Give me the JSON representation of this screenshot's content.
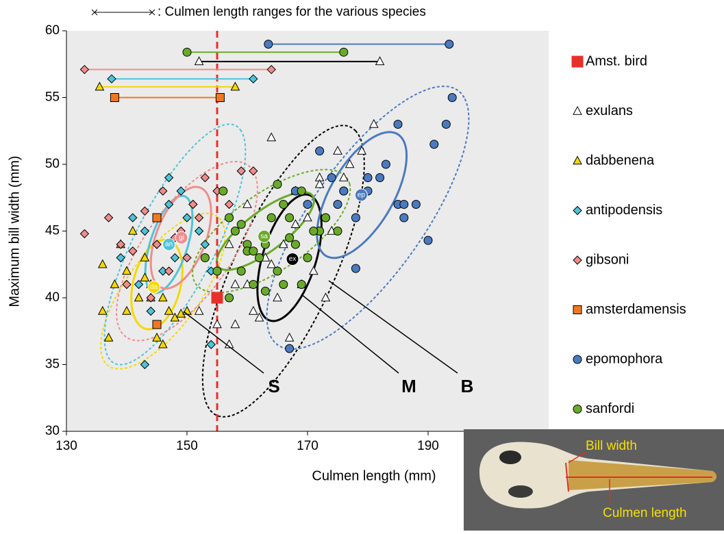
{
  "chart_data": {
    "type": "scatter",
    "range_note": ": Culmen length ranges for the various species",
    "x_label": "Culmen length (mm)",
    "y_label": "Maximum bill width (mm)",
    "xlim": [
      130,
      210
    ],
    "ylim": [
      30,
      60
    ],
    "xticks": [
      130,
      150,
      170,
      190
    ],
    "yticks": [
      30,
      35,
      40,
      45,
      50,
      55,
      60
    ],
    "reference_x": 155,
    "reference_color": "#e8302a",
    "annotations": [
      "S",
      "M",
      "B"
    ],
    "series": [
      {
        "name": "Amst. bird",
        "color": "#e8302a",
        "marker": "square",
        "x": [
          155
        ],
        "values": [
          40
        ]
      },
      {
        "name": "exulans",
        "color": "#ffffff",
        "line_color": "#000000",
        "marker": "triangle",
        "x": [
          181,
          175,
          172,
          164,
          168,
          160,
          157,
          158,
          163,
          166,
          170,
          174,
          176,
          161,
          165,
          169,
          171,
          173,
          158,
          162,
          167,
          179,
          177,
          152,
          155,
          160,
          164,
          168,
          172,
          157
        ],
        "values": [
          53,
          51,
          49,
          52,
          48,
          47,
          44,
          41,
          43,
          44,
          46,
          45,
          49,
          39,
          40,
          41,
          42,
          40,
          38,
          38.5,
          37,
          51,
          50,
          39,
          38,
          41,
          42.5,
          45.5,
          48.5,
          36.5
        ],
        "range": [
          152,
          182
        ],
        "range_y": 57.7,
        "center_label": "ex",
        "center": [
          167.5,
          42.9
        ],
        "ellipses": [
          {
            "center": [
              167,
              43
            ],
            "axis1": [
              4,
              4.5
            ],
            "axis2": [
              -3.5,
              1.5
            ],
            "dashed": false
          },
          {
            "center": [
              166,
              42
            ],
            "axis1": [
              12,
              10.5
            ],
            "axis2": [
              -6,
              3
            ],
            "dashed": true
          }
        ]
      },
      {
        "name": "dabbenena",
        "color": "#f5d800",
        "line_color": "#f5d800",
        "marker": "triangle",
        "x": [
          136,
          138,
          140,
          142,
          143,
          144,
          145,
          146,
          147,
          148,
          139,
          141,
          137,
          149,
          150,
          143,
          146,
          140,
          136,
          144
        ],
        "values": [
          42.5,
          41,
          39,
          40,
          43,
          41,
          37,
          40,
          39,
          38.5,
          44,
          45,
          37,
          38.8,
          39,
          41.5,
          36.5,
          42,
          39,
          40
        ],
        "range": [
          135.5,
          158
        ],
        "range_y": 55.8,
        "center_label": "da",
        "center": [
          144.5,
          40.8
        ],
        "ellipses": [
          {
            "center": [
              145,
              41
            ],
            "axis1": [
              3,
              3
            ],
            "axis2": [
              -3,
              1.5
            ],
            "dashed": false
          },
          {
            "center": [
              146,
              40.5
            ],
            "axis1": [
              10,
              5
            ],
            "axis2": [
              -2.5,
              3
            ],
            "dashed": true
          }
        ]
      },
      {
        "name": "antipodensis",
        "color": "#4fc3d9",
        "line_color": "#4fc3d9",
        "marker": "diamond",
        "x": [
          139,
          141,
          143,
          145,
          147,
          149,
          150,
          152,
          153,
          154,
          146,
          144,
          142,
          148,
          151,
          143,
          147,
          154
        ],
        "values": [
          43,
          46,
          45,
          44,
          47,
          48,
          46,
          45,
          44,
          36.5,
          42,
          39,
          41,
          43,
          47,
          35,
          49,
          42
        ],
        "range": [
          137.5,
          161
        ],
        "range_y": 56.4,
        "center_label": "an",
        "center": [
          147,
          44
        ],
        "ellipses": [
          {
            "center": [
              147,
              44
            ],
            "axis1": [
              3,
              3.5
            ],
            "axis2": [
              -2.5,
              1
            ],
            "dashed": false
          },
          {
            "center": [
              148,
              44
            ],
            "axis1": [
              11,
              8.5
            ],
            "axis2": [
              -4,
              3
            ],
            "dashed": true
          }
        ]
      },
      {
        "name": "gibsoni",
        "color": "#f08c8c",
        "line_color": "#f08c8c",
        "marker": "diamond",
        "x": [
          133,
          137,
          139,
          141,
          143,
          145,
          147,
          149,
          151,
          153,
          155,
          157,
          159,
          161,
          140,
          144,
          148,
          152,
          150,
          146
        ],
        "values": [
          44.8,
          46,
          44,
          43.5,
          46.5,
          44,
          42,
          45,
          47,
          49,
          48,
          47,
          49.5,
          49.5,
          41,
          40,
          44.5,
          46,
          43,
          48
        ],
        "range": [
          133,
          164
        ],
        "range_y": 57.1,
        "center_label": "gi",
        "center": [
          149.1,
          44.5
        ],
        "ellipses": [
          {
            "center": [
              149,
              44.5
            ],
            "axis1": [
              4,
              3.5
            ],
            "axis2": [
              -3,
              1.5
            ],
            "dashed": false
          },
          {
            "center": [
              150,
              43.5
            ],
            "axis1": [
              11,
              6
            ],
            "axis2": [
              -4,
              3
            ],
            "dashed": true
          }
        ]
      },
      {
        "name": "amsterdamensis",
        "color": "#f07820",
        "line_color": "#f07820",
        "marker": "square",
        "x": [
          145,
          145
        ],
        "values": [
          46,
          38
        ],
        "range": [
          138,
          155.5
        ],
        "range_y": 55
      },
      {
        "name": "epomophora",
        "color": "#4a7abf",
        "line_color": "#4a7abf",
        "marker": "circle",
        "x": [
          183,
          185,
          188,
          191,
          193,
          194,
          185,
          180,
          178,
          176,
          175,
          172,
          174,
          182,
          186,
          178,
          170,
          168,
          167,
          186,
          190,
          173,
          176,
          180
        ],
        "values": [
          50,
          53,
          47,
          51.5,
          53,
          55,
          47,
          48,
          46,
          48,
          47,
          51,
          49,
          49,
          47,
          42.2,
          47,
          48,
          36.2,
          46,
          44.3,
          46,
          48,
          49
        ],
        "range": [
          163.5,
          193.5
        ],
        "range_y": 59,
        "center_label": "ep",
        "center": [
          178.9,
          47.7
        ],
        "ellipses": [
          {
            "center": [
              179,
              47.7
            ],
            "axis1": [
              7,
              4
            ],
            "axis2": [
              -2.5,
              2.5
            ],
            "dashed": false
          },
          {
            "center": [
              180,
              46
            ],
            "axis1": [
              16,
              9
            ],
            "axis2": [
              -5,
              4
            ],
            "dashed": true
          }
        ]
      },
      {
        "name": "sanfordi",
        "color": "#6aaa2a",
        "line_color": "#6aaa2a",
        "marker": "circle",
        "x": [
          156,
          158,
          160,
          162,
          164,
          166,
          168,
          170,
          172,
          157,
          159,
          161,
          163,
          165,
          167,
          169,
          171,
          153,
          155,
          159,
          163,
          166,
          160,
          175,
          173,
          165,
          167,
          157,
          161,
          169
        ],
        "values": [
          48,
          45,
          44,
          43,
          46,
          47,
          44,
          43,
          45,
          40,
          42,
          41,
          40.5,
          42,
          46,
          48,
          45,
          43,
          42,
          45.5,
          44,
          41,
          43.5,
          45,
          46,
          48.5,
          44.5,
          46,
          43.5,
          41
        ],
        "range": [
          150,
          176
        ],
        "range_y": 58.4,
        "center_label": "sa",
        "center": [
          162.8,
          44.6
        ],
        "ellipses": [
          {
            "center": [
              163,
              45
            ],
            "axis1": [
              8,
              2.5
            ],
            "axis2": [
              -1,
              1.5
            ],
            "dashed": false
          },
          {
            "center": [
              164,
              45
            ],
            "axis1": [
              13,
              3.5
            ],
            "axis2": [
              -1.5,
              3
            ],
            "dashed": true
          }
        ]
      }
    ],
    "inset": {
      "labels": [
        "Bill width",
        "Culmen length"
      ]
    }
  }
}
